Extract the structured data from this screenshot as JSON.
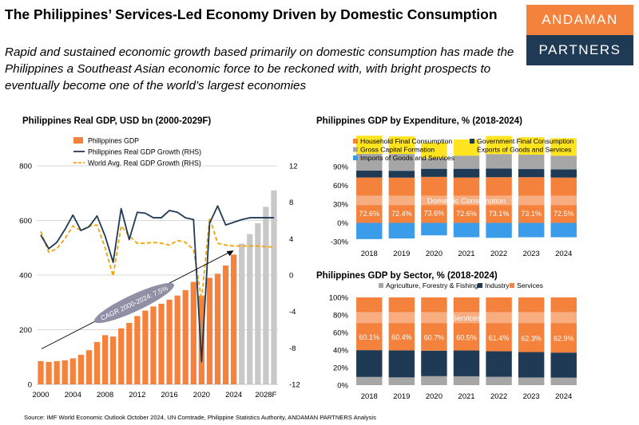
{
  "header": {
    "title": "The Philippines’ Services-Led Economy Driven by Domestic Consumption",
    "subtitle": "Rapid and sustained economic growth based primarily on domestic consumption has made the Philippines a Southeast Asian economic force to be reckoned with, with bright prospects to eventually become one of the world’s largest economies"
  },
  "logo": {
    "line1": "ANDAMAN",
    "line2": "PARTNERS"
  },
  "colors": {
    "orange": "#f4823d",
    "navy": "#1f3a55",
    "gray": "#c8c8c8",
    "gold": "#f0b323",
    "yellow": "#ffe41f",
    "blue": "#3b9dea",
    "lightgray": "#a6a6a6",
    "ribbon": "#8f8fa6"
  },
  "source": "Source: IMF World Economic Outlook October 2024, UN Comtrade, Philippine Statistics Authority, ANDAMAN PARTNERS Analysis",
  "chart_data": [
    {
      "type": "bar",
      "title": "Philippines Real GDP, USD bn (2000-2029F)",
      "x": [
        2000,
        2001,
        2002,
        2003,
        2004,
        2005,
        2006,
        2007,
        2008,
        2009,
        2010,
        2011,
        2012,
        2013,
        2014,
        2015,
        2016,
        2017,
        2018,
        2019,
        2020,
        2021,
        2022,
        2023,
        2024,
        2025,
        2026,
        2027,
        2028,
        2029
      ],
      "x_tick_labels": [
        "2000",
        "2004",
        "2008",
        "2012",
        "2016",
        "2020",
        "2024",
        "2028F"
      ],
      "y_ticks": [
        "0",
        "200",
        "400",
        "600",
        "800"
      ],
      "y2_ticks": [
        "-12",
        "-8",
        "-4",
        "0",
        "4",
        "8",
        "12"
      ],
      "ylim": [
        0,
        800
      ],
      "y2lim": [
        -12,
        12
      ],
      "series": [
        {
          "name": "Philippines GDP",
          "kind": "bar",
          "values": [
            85,
            82,
            85,
            88,
            95,
            108,
            125,
            155,
            180,
            175,
            205,
            225,
            250,
            270,
            285,
            295,
            310,
            325,
            345,
            375,
            325,
            390,
            405,
            435,
            475,
            515,
            550,
            590,
            650,
            710
          ],
          "forecast_from": 2025
        },
        {
          "name": "Philippines Real GDP Growth (RHS)",
          "kind": "line",
          "axis": "right",
          "values": [
            4.4,
            2.9,
            3.6,
            5.0,
            6.6,
            4.9,
            5.3,
            6.5,
            4.3,
            1.4,
            7.3,
            3.9,
            6.9,
            6.8,
            6.3,
            6.3,
            7.1,
            6.9,
            6.3,
            6.1,
            -9.5,
            5.7,
            7.6,
            5.5,
            5.8,
            6.1,
            6.3,
            6.3,
            6.3,
            6.3
          ]
        },
        {
          "name": "World Avg. Real GDP Growth (RHS)",
          "kind": "dashed-line",
          "axis": "right",
          "values": [
            4.8,
            2.5,
            2.9,
            4.0,
            5.4,
            4.9,
            5.4,
            5.5,
            3.0,
            -0.1,
            5.4,
            4.3,
            3.5,
            3.5,
            3.6,
            3.5,
            3.3,
            3.8,
            3.6,
            2.8,
            -2.7,
            6.3,
            3.5,
            3.3,
            3.2,
            3.2,
            3.2,
            3.2,
            3.1,
            3.1
          ]
        }
      ],
      "annotation": "CAGR 2000-2024: 7.5%"
    },
    {
      "type": "bar",
      "title": "Philippines GDP by Expenditure, % (2018-2024)",
      "categories": [
        "2018",
        "2019",
        "2020",
        "2021",
        "2022",
        "2023",
        "2024"
      ],
      "y_ticks": [
        "-30%",
        "0%",
        "30%",
        "60%",
        "90%"
      ],
      "ylim": [
        -30,
        90
      ],
      "series": [
        {
          "name": "Household Final Consumption",
          "values": [
            72.6,
            72.4,
            73.6,
            72.6,
            73.1,
            73.1,
            72.5
          ]
        },
        {
          "name": "Government Final Consumption",
          "values": [
            11,
            11,
            13,
            14,
            14,
            13,
            13
          ]
        },
        {
          "name": "Gross Capital Formation",
          "values": [
            27,
            27,
            17,
            21,
            23,
            23,
            22
          ]
        },
        {
          "name": "Exports of Goods and Services",
          "values": [
            29,
            28,
            25,
            26,
            29,
            28,
            28
          ]
        },
        {
          "name": "Imports of Goods and Services",
          "values": [
            -26,
            -25,
            -20,
            -23,
            -24,
            -23,
            -23
          ]
        }
      ],
      "annotation": "Domestic Consumption",
      "data_labels": [
        "72.6%",
        "72.4%",
        "73.6%",
        "72.6%",
        "73.1%",
        "73.1%",
        "72.5%"
      ]
    },
    {
      "type": "bar",
      "title": "Philippines GDP by Sector, % (2018-2024)",
      "categories": [
        "2018",
        "2019",
        "2020",
        "2021",
        "2022",
        "2023",
        "2024"
      ],
      "y_ticks": [
        "0%",
        "20%",
        "40%",
        "60%",
        "80%",
        "100%"
      ],
      "ylim": [
        0,
        100
      ],
      "series": [
        {
          "name": "Agriculture, Forestry & Fishing",
          "values": [
            9.3,
            8.8,
            10.2,
            10.1,
            9.5,
            8.7,
            8.6
          ]
        },
        {
          "name": "Industry",
          "values": [
            30.6,
            30.8,
            29.1,
            29.4,
            29.1,
            29.0,
            28.5
          ]
        },
        {
          "name": "Services",
          "values": [
            60.1,
            60.4,
            60.7,
            60.5,
            61.4,
            62.3,
            62.9
          ]
        }
      ],
      "annotation": "Services",
      "data_labels": [
        "60.1%",
        "60.4%",
        "60.7%",
        "60.5%",
        "61.4%",
        "62.3%",
        "62.9%"
      ]
    }
  ]
}
